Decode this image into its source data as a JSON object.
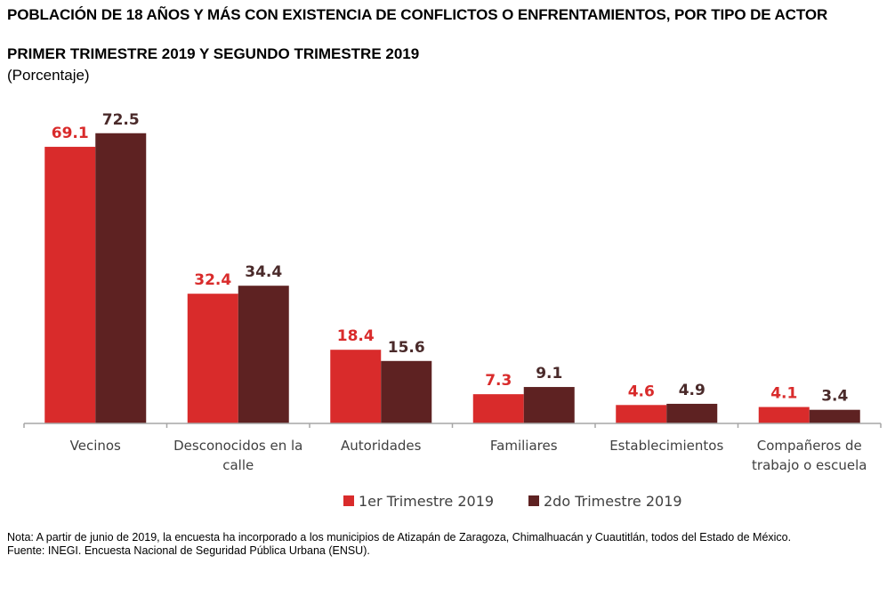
{
  "header": {
    "title": "POBLACIÓN DE 18 AÑOS Y MÁS CON EXISTENCIA DE CONFLICTOS O ENFRENTAMIENTOS, POR TIPO DE ACTOR",
    "subtitle": "PRIMER TRIMESTRE 2019 Y SEGUNDO TRIMESTRE 2019",
    "unit": "(Porcentaje)"
  },
  "chart_data": {
    "type": "bar",
    "title": "POBLACIÓN DE 18 AÑOS Y MÁS CON EXISTENCIA DE CONFLICTOS O ENFRENTAMIENTOS, POR TIPO DE ACTOR",
    "subtitle": "PRIMER TRIMESTRE 2019 Y SEGUNDO TRIMESTRE 2019",
    "xlabel": "",
    "ylabel": "(Porcentaje)",
    "ylim": [
      0,
      80
    ],
    "grid": false,
    "legend_position": "bottom",
    "categories": [
      [
        "Vecinos"
      ],
      [
        "Desconocidos en la",
        "calle"
      ],
      [
        "Autoridades"
      ],
      [
        "Familiares"
      ],
      [
        "Establecimientos"
      ],
      [
        "Compañeros de",
        "trabajo o escuela"
      ]
    ],
    "series": [
      {
        "name": "1er Trimestre 2019",
        "color": "#d92b2b",
        "label_color": "#d92b2b",
        "values": [
          69.1,
          32.4,
          18.4,
          7.3,
          4.6,
          4.1
        ]
      },
      {
        "name": "2do Trimestre 2019",
        "color": "#5e2222",
        "label_color": "#4a2a2a",
        "values": [
          72.5,
          34.4,
          15.6,
          9.1,
          4.9,
          3.4
        ]
      }
    ]
  },
  "notes": {
    "nota": "Nota: A partir de junio de 2019, la encuesta ha incorporado a los municipios de Atizapán de Zaragoza, Chimalhuacán y Cuautitlán, todos del Estado de México.",
    "fuente": "Fuente: INEGI. Encuesta Nacional de Seguridad Pública Urbana (ENSU)."
  }
}
